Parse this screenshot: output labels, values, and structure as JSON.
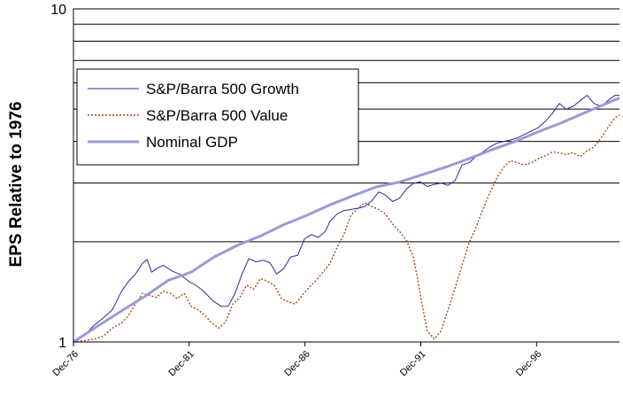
{
  "chart_data": {
    "type": "line",
    "title": "",
    "ylabel": "EPS Relative to 1976",
    "xlabel": "",
    "yscale": "log",
    "ylim": [
      1,
      10
    ],
    "yticks": [
      {
        "value": 1,
        "label": "1"
      },
      {
        "value": 10,
        "label": "10"
      }
    ],
    "xlim": [
      1976.92,
      2000.5
    ],
    "xticks": [
      {
        "value": 1976.92,
        "label": "Dec-76"
      },
      {
        "value": 1981.92,
        "label": "Dec-81"
      },
      {
        "value": 1986.92,
        "label": "Dec-86"
      },
      {
        "value": 1991.92,
        "label": "Dec-91"
      },
      {
        "value": 1996.92,
        "label": "Dec-96"
      }
    ],
    "gridlines": "horizontal",
    "legend_position": "top-left",
    "series": [
      {
        "name": "S&P/Barra 500 Growth",
        "style": "solid-thin",
        "color": "#2a2a9a",
        "x": [
          1976.92,
          1977.4,
          1977.8,
          1978.2,
          1978.6,
          1979.0,
          1979.3,
          1979.6,
          1979.9,
          1980.1,
          1980.3,
          1980.5,
          1980.8,
          1981.2,
          1981.5,
          1981.9,
          1982.2,
          1982.5,
          1982.8,
          1983.0,
          1983.3,
          1983.6,
          1983.9,
          1984.2,
          1984.5,
          1984.8,
          1985.1,
          1985.4,
          1985.7,
          1986.0,
          1986.3,
          1986.6,
          1986.9,
          1987.2,
          1987.5,
          1987.8,
          1988.0,
          1988.3,
          1988.6,
          1988.9,
          1989.2,
          1989.5,
          1989.8,
          1990.1,
          1990.4,
          1990.7,
          1991.0,
          1991.3,
          1991.6,
          1991.9,
          1992.2,
          1992.5,
          1992.8,
          1993.1,
          1993.4,
          1993.7,
          1994.0,
          1994.3,
          1994.6,
          1994.9,
          1995.2,
          1995.5,
          1995.8,
          1996.1,
          1996.4,
          1996.7,
          1997.0,
          1997.3,
          1997.6,
          1997.9,
          1998.2,
          1998.5,
          1998.8,
          1999.1,
          1999.4,
          1999.7,
          2000.0,
          2000.3,
          2000.5
        ],
        "values": [
          1.0,
          1.05,
          1.12,
          1.18,
          1.25,
          1.42,
          1.52,
          1.6,
          1.72,
          1.77,
          1.62,
          1.66,
          1.7,
          1.63,
          1.6,
          1.52,
          1.48,
          1.43,
          1.36,
          1.32,
          1.28,
          1.28,
          1.4,
          1.6,
          1.78,
          1.74,
          1.76,
          1.73,
          1.6,
          1.66,
          1.8,
          1.82,
          2.04,
          2.1,
          2.06,
          2.15,
          2.3,
          2.42,
          2.48,
          2.5,
          2.52,
          2.55,
          2.65,
          2.82,
          2.76,
          2.64,
          2.7,
          2.88,
          2.99,
          3.03,
          2.93,
          2.97,
          3.0,
          2.95,
          3.05,
          3.4,
          3.45,
          3.6,
          3.72,
          3.85,
          3.95,
          4.0,
          4.04,
          4.1,
          4.2,
          4.3,
          4.4,
          4.6,
          4.85,
          5.2,
          5.0,
          5.1,
          5.3,
          5.5,
          5.2,
          5.1,
          5.3,
          5.5,
          5.5
        ]
      },
      {
        "name": "S&P/Barra 500 Value",
        "style": "dotted",
        "color": "#b04418",
        "x": [
          1976.92,
          1977.4,
          1977.8,
          1978.2,
          1978.6,
          1979.0,
          1979.3,
          1979.6,
          1979.9,
          1980.2,
          1980.5,
          1980.8,
          1981.1,
          1981.4,
          1981.7,
          1982.0,
          1982.3,
          1982.6,
          1982.9,
          1983.2,
          1983.5,
          1983.8,
          1984.1,
          1984.4,
          1984.7,
          1985.0,
          1985.3,
          1985.6,
          1985.9,
          1986.2,
          1986.5,
          1986.8,
          1987.1,
          1987.4,
          1987.7,
          1988.0,
          1988.3,
          1988.6,
          1988.9,
          1989.2,
          1989.5,
          1989.8,
          1990.1,
          1990.4,
          1990.7,
          1991.0,
          1991.3,
          1991.6,
          1991.8,
          1992.0,
          1992.2,
          1992.5,
          1992.8,
          1993.1,
          1993.4,
          1993.7,
          1994.0,
          1994.3,
          1994.6,
          1994.9,
          1995.2,
          1995.5,
          1995.8,
          1996.1,
          1996.4,
          1996.7,
          1997.0,
          1997.3,
          1997.6,
          1997.9,
          1998.2,
          1998.5,
          1998.8,
          1999.1,
          1999.4,
          1999.7,
          2000.0,
          2000.3,
          2000.5
        ],
        "values": [
          1.0,
          1.01,
          1.02,
          1.04,
          1.1,
          1.14,
          1.2,
          1.3,
          1.4,
          1.38,
          1.36,
          1.42,
          1.4,
          1.35,
          1.4,
          1.28,
          1.25,
          1.2,
          1.14,
          1.1,
          1.15,
          1.3,
          1.36,
          1.48,
          1.44,
          1.55,
          1.52,
          1.48,
          1.35,
          1.32,
          1.3,
          1.38,
          1.46,
          1.53,
          1.62,
          1.72,
          1.92,
          2.1,
          2.4,
          2.52,
          2.62,
          2.55,
          2.5,
          2.42,
          2.26,
          2.15,
          2.02,
          1.8,
          1.52,
          1.27,
          1.08,
          1.02,
          1.08,
          1.25,
          1.45,
          1.7,
          1.98,
          2.2,
          2.5,
          2.8,
          3.1,
          3.35,
          3.5,
          3.45,
          3.4,
          3.45,
          3.55,
          3.62,
          3.72,
          3.7,
          3.65,
          3.7,
          3.6,
          3.75,
          3.85,
          4.1,
          4.4,
          4.7,
          4.8
        ]
      },
      {
        "name": "Nominal GDP",
        "style": "solid-thick",
        "color": "#9a9ad6",
        "x": [
          1976.92,
          1978,
          1979,
          1980,
          1981,
          1982,
          1983,
          1984,
          1985,
          1986,
          1987,
          1988,
          1989,
          1990,
          1991,
          1992,
          1993,
          1994,
          1995,
          1996,
          1997,
          1998,
          1999,
          2000.5
        ],
        "values": [
          1.0,
          1.12,
          1.24,
          1.37,
          1.53,
          1.62,
          1.8,
          1.95,
          2.08,
          2.25,
          2.4,
          2.58,
          2.75,
          2.92,
          3.02,
          3.18,
          3.35,
          3.55,
          3.78,
          4.0,
          4.28,
          4.55,
          4.88,
          5.4
        ]
      }
    ]
  }
}
